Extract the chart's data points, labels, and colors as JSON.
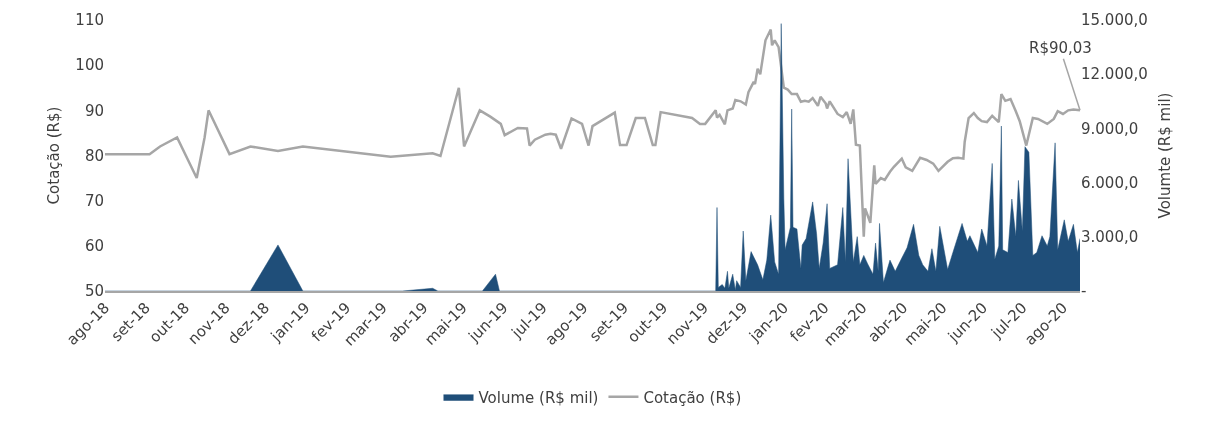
{
  "chart_data": {
    "type": "line",
    "ylabel": "Cotação (R$)",
    "y2label": "Volumte (R$ mil)",
    "xlim": [
      "2018-08-01",
      "2020-08-14"
    ],
    "xticks": [
      {
        "value": "2018-08-01",
        "label": "ago-18"
      },
      {
        "value": "2018-09-01",
        "label": "set-18"
      },
      {
        "value": "2018-10-01",
        "label": "out-18"
      },
      {
        "value": "2018-11-01",
        "label": "nov-18"
      },
      {
        "value": "2018-12-01",
        "label": "dez-18"
      },
      {
        "value": "2019-01-01",
        "label": "jan-19"
      },
      {
        "value": "2019-02-01",
        "label": "fev-19"
      },
      {
        "value": "2019-03-01",
        "label": "mar-19"
      },
      {
        "value": "2019-04-01",
        "label": "abr-19"
      },
      {
        "value": "2019-05-01",
        "label": "mai-19"
      },
      {
        "value": "2019-06-01",
        "label": "jun-19"
      },
      {
        "value": "2019-07-01",
        "label": "jul-19"
      },
      {
        "value": "2019-08-01",
        "label": "ago-19"
      },
      {
        "value": "2019-09-01",
        "label": "set-19"
      },
      {
        "value": "2019-10-01",
        "label": "out-19"
      },
      {
        "value": "2019-11-01",
        "label": "nov-19"
      },
      {
        "value": "2019-12-01",
        "label": "dez-19"
      },
      {
        "value": "2020-01-01",
        "label": "jan-20"
      },
      {
        "value": "2020-02-01",
        "label": "fev-20"
      },
      {
        "value": "2020-03-01",
        "label": "mar-20"
      },
      {
        "value": "2020-04-01",
        "label": "abr-20"
      },
      {
        "value": "2020-05-01",
        "label": "mai-20"
      },
      {
        "value": "2020-06-01",
        "label": "jun-20"
      },
      {
        "value": "2020-07-01",
        "label": "jul-20"
      },
      {
        "value": "2020-08-01",
        "label": "ago-20"
      }
    ],
    "ylim": [
      50,
      110
    ],
    "yticks": [
      50,
      60,
      70,
      80,
      90,
      100,
      110
    ],
    "y2lim": [
      0,
      15000
    ],
    "y2ticks": [
      {
        "value": 0,
        "label": "-"
      },
      {
        "value": 3000,
        "label": "3.000,0"
      },
      {
        "value": 6000,
        "label": "6.000,0"
      },
      {
        "value": 9000,
        "label": "9.000,0"
      },
      {
        "value": 12000,
        "label": "12.000,0"
      },
      {
        "value": 15000,
        "label": "15.000,0"
      }
    ],
    "grid": false,
    "legend": "bottom",
    "marker": "none",
    "line_style": "solid",
    "annotations": [
      {
        "text": "R$90,03",
        "x": "2020-08-14",
        "y": 90.03
      }
    ],
    "series": [
      {
        "name": "Volume (R$ mil)",
        "type": "area",
        "axis": "y2",
        "color": "#1f4e79",
        "x": [
          "2018-08-01",
          "2018-11-20",
          "2018-12-11",
          "2018-12-30",
          "2019-03-16",
          "2019-04-08",
          "2019-04-12",
          "2019-05-16",
          "2019-05-26",
          "2019-05-29",
          "2019-11-10",
          "2019-11-11",
          "2019-11-12",
          "2019-11-15",
          "2019-11-17",
          "2019-11-19",
          "2019-11-20",
          "2019-11-23",
          "2019-11-25",
          "2019-11-26",
          "2019-11-29",
          "2019-12-01",
          "2019-12-03",
          "2019-12-07",
          "2019-12-12",
          "2019-12-16",
          "2019-12-19",
          "2019-12-22",
          "2019-12-25",
          "2019-12-28",
          "2019-12-30",
          "2020-01-01",
          "2020-01-02",
          "2020-01-06",
          "2020-01-07",
          "2020-01-08",
          "2020-01-11",
          "2020-01-14",
          "2020-01-15",
          "2020-01-18",
          "2020-01-23",
          "2020-01-26",
          "2020-01-28",
          "2020-01-31",
          "2020-02-03",
          "2020-02-05",
          "2020-02-11",
          "2020-02-15",
          "2020-02-17",
          "2020-02-19",
          "2020-02-23",
          "2020-02-26",
          "2020-02-28",
          "2020-03-02",
          "2020-03-05",
          "2020-03-09",
          "2020-03-11",
          "2020-03-13",
          "2020-03-14",
          "2020-03-17",
          "2020-03-22",
          "2020-03-26",
          "2020-03-31",
          "2020-04-04",
          "2020-04-09",
          "2020-04-13",
          "2020-04-16",
          "2020-04-20",
          "2020-04-23",
          "2020-04-26",
          "2020-04-29",
          "2020-05-05",
          "2020-05-09",
          "2020-05-16",
          "2020-05-20",
          "2020-05-22",
          "2020-05-28",
          "2020-05-31",
          "2020-06-04",
          "2020-06-08",
          "2020-06-10",
          "2020-06-13",
          "2020-06-15",
          "2020-06-16",
          "2020-06-20",
          "2020-06-23",
          "2020-06-26",
          "2020-06-28",
          "2020-07-01",
          "2020-07-03",
          "2020-07-06",
          "2020-07-09",
          "2020-07-12",
          "2020-07-16",
          "2020-07-20",
          "2020-07-22",
          "2020-07-26",
          "2020-07-28",
          "2020-08-02",
          "2020-08-05",
          "2020-08-09",
          "2020-08-12",
          "2020-08-14"
        ],
        "values": [
          0,
          0,
          2550,
          0,
          0,
          150,
          0,
          0,
          930,
          0,
          0,
          4620,
          200,
          360,
          150,
          1090,
          150,
          930,
          50,
          570,
          200,
          3320,
          570,
          2180,
          1450,
          620,
          1710,
          4200,
          1610,
          930,
          14800,
          5090,
          2280,
          3530,
          10070,
          3530,
          3430,
          1250,
          2540,
          2910,
          4930,
          3170,
          1250,
          2650,
          4830,
          1250,
          1450,
          4620,
          1610,
          7320,
          1610,
          3010,
          1450,
          1970,
          1500,
          930,
          2650,
          1090,
          3740,
          470,
          1710,
          1090,
          1820,
          2390,
          3690,
          1970,
          1450,
          1090,
          2340,
          1090,
          3580,
          1190,
          2130,
          3740,
          2750,
          3060,
          2130,
          3430,
          2490,
          7060,
          1760,
          2490,
          9130,
          2280,
          2130,
          5090,
          3010,
          6120,
          3320,
          7990,
          7680,
          1970,
          2130,
          3060,
          2490,
          3010,
          8200,
          2280,
          3940,
          2750,
          3690,
          2130,
          2910
        ]
      },
      {
        "name": "Cotação (R$)",
        "type": "line",
        "color": "#a6a6a6",
        "x": [
          "2018-08-01",
          "2018-09-04",
          "2018-09-12",
          "2018-09-25",
          "2018-10-10",
          "2018-10-16",
          "2018-10-19",
          "2018-11-04",
          "2018-11-20",
          "2018-12-11",
          "2018-12-30",
          "2019-03-07",
          "2019-04-08",
          "2019-04-14",
          "2019-04-28",
          "2019-05-02",
          "2019-05-14",
          "2019-05-22",
          "2019-05-30",
          "2019-06-02",
          "2019-06-12",
          "2019-06-19",
          "2019-06-21",
          "2019-06-25",
          "2019-07-03",
          "2019-07-07",
          "2019-07-11",
          "2019-07-15",
          "2019-07-23",
          "2019-07-31",
          "2019-08-05",
          "2019-08-08",
          "2019-08-25",
          "2019-08-29",
          "2019-09-03",
          "2019-09-10",
          "2019-09-17",
          "2019-09-23",
          "2019-09-25",
          "2019-09-29",
          "2019-10-23",
          "2019-10-29",
          "2019-11-02",
          "2019-11-10",
          "2019-11-11",
          "2019-11-13",
          "2019-11-17",
          "2019-11-19",
          "2019-11-23",
          "2019-11-25",
          "2019-11-29",
          "2019-12-03",
          "2019-12-05",
          "2019-12-09",
          "2019-12-10",
          "2019-12-12",
          "2019-12-14",
          "2019-12-18",
          "2019-12-22",
          "2019-12-23",
          "2019-12-25",
          "2019-12-28",
          "2020-01-01",
          "2020-01-04",
          "2020-01-07",
          "2020-01-11",
          "2020-01-14",
          "2020-01-17",
          "2020-01-20",
          "2020-01-23",
          "2020-01-27",
          "2020-01-29",
          "2020-02-02",
          "2020-02-03",
          "2020-02-05",
          "2020-02-11",
          "2020-02-15",
          "2020-02-18",
          "2020-02-21",
          "2020-02-23",
          "2020-02-25",
          "2020-02-28",
          "2020-03-02",
          "2020-03-03",
          "2020-03-07",
          "2020-03-10",
          "2020-03-11",
          "2020-03-15",
          "2020-03-18",
          "2020-03-22",
          "2020-03-25",
          "2020-03-31",
          "2020-04-03",
          "2020-04-08",
          "2020-04-14",
          "2020-04-19",
          "2020-04-24",
          "2020-04-28",
          "2020-05-05",
          "2020-05-09",
          "2020-05-13",
          "2020-05-17",
          "2020-05-18",
          "2020-05-21",
          "2020-05-25",
          "2020-05-28",
          "2020-05-31",
          "2020-06-04",
          "2020-06-08",
          "2020-06-13",
          "2020-06-15",
          "2020-06-18",
          "2020-06-22",
          "2020-06-26",
          "2020-06-29",
          "2020-07-04",
          "2020-07-09",
          "2020-07-13",
          "2020-07-20",
          "2020-07-25",
          "2020-07-28",
          "2020-08-01",
          "2020-08-05",
          "2020-08-09",
          "2020-08-14"
        ],
        "values": [
          80.3,
          80.3,
          82,
          84,
          75,
          84,
          90,
          80.3,
          82,
          81,
          82,
          79.7,
          80.5,
          79.9,
          95,
          82,
          90,
          88.6,
          87,
          84.5,
          86.1,
          86,
          82.2,
          83.5,
          84.6,
          84.8,
          84.6,
          81.5,
          88.2,
          87,
          82.2,
          86.5,
          89.5,
          82.3,
          82.3,
          88.3,
          88.3,
          82.3,
          82.3,
          89.6,
          88.3,
          87,
          87,
          90,
          88.4,
          89,
          86.9,
          90,
          90.4,
          92.3,
          92,
          91.3,
          94,
          96.3,
          95.8,
          99.2,
          98,
          105.5,
          107.9,
          104.4,
          105.5,
          104,
          95,
          94.6,
          93.6,
          93.6,
          91.9,
          92.1,
          91.9,
          92.7,
          91,
          93,
          91.5,
          90.4,
          92,
          89.2,
          88.5,
          89.6,
          87,
          90.2,
          82.4,
          82.2,
          62,
          68.3,
          65.1,
          77.8,
          73.7,
          75,
          74.6,
          76.4,
          77.5,
          79.3,
          77.4,
          76.6,
          79.5,
          79,
          78.2,
          76.6,
          78.6,
          79.4,
          79.5,
          79.3,
          83,
          88.3,
          89.4,
          88.3,
          87.6,
          87.4,
          88.8,
          87.4,
          93.6,
          92.1,
          92.5,
          89.8,
          87.6,
          82.2,
          88.3,
          88.1,
          87,
          88.1,
          89.8,
          89.2,
          90,
          90.2,
          90.03
        ]
      }
    ]
  }
}
